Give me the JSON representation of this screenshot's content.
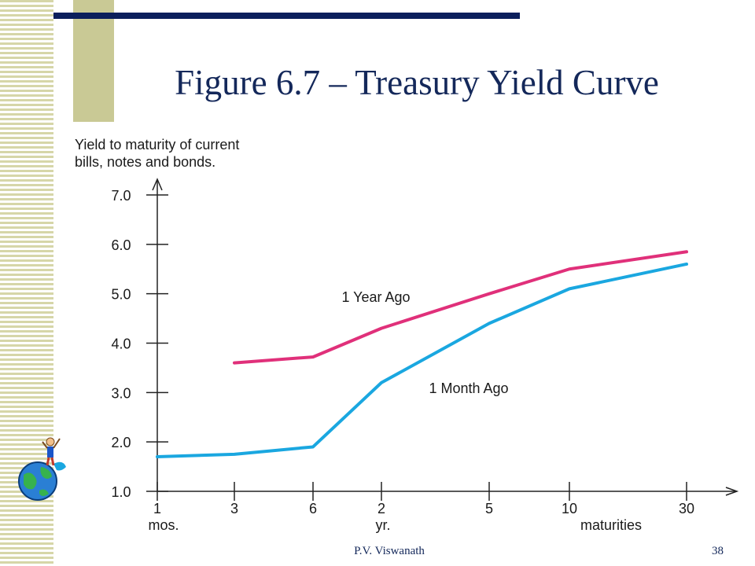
{
  "slide": {
    "title": "Figure 6.7 – Treasury Yield Curve",
    "author": "P.V. Viswanath",
    "page_number": "38",
    "decoration_icon": "globe-with-figure-icon"
  },
  "colors": {
    "title": "#14285a",
    "series_year": "#e0307a",
    "series_month": "#1aa7e0",
    "axis": "#222222"
  },
  "chart_data": {
    "type": "line",
    "ylabel": "Yield to maturity of current\nbills, notes and bonds.",
    "xlabel": "maturities",
    "ylim": [
      1.0,
      7.0
    ],
    "yticks": [
      "1.0",
      "2.0",
      "3.0",
      "4.0",
      "5.0",
      "6.0",
      "7.0"
    ],
    "x": [
      {
        "label": "1",
        "unit": "mos."
      },
      {
        "label": "3",
        "unit": ""
      },
      {
        "label": "6",
        "unit": ""
      },
      {
        "label": "2",
        "unit": "yr."
      },
      {
        "label": "5",
        "unit": ""
      },
      {
        "label": "10",
        "unit": ""
      },
      {
        "label": "30",
        "unit": ""
      }
    ],
    "series": [
      {
        "name": "1 Year Ago",
        "values": [
          null,
          3.6,
          3.72,
          4.3,
          5.0,
          5.5,
          5.85
        ]
      },
      {
        "name": "1 Month Ago",
        "values": [
          1.7,
          1.75,
          1.9,
          3.2,
          4.4,
          5.1,
          5.6
        ]
      }
    ]
  }
}
